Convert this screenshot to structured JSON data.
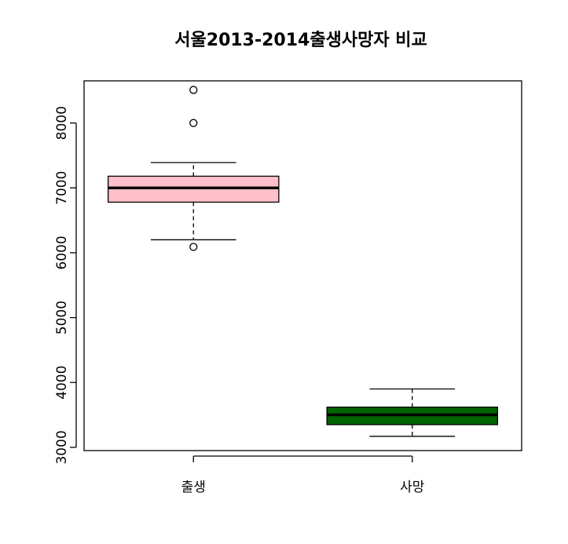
{
  "chart_data": {
    "type": "boxplot",
    "title": "서울2013-2014출생사망자 비교",
    "xlabel": "",
    "ylabel": "",
    "ylim": [
      2950,
      8650
    ],
    "yticks": [
      3000,
      4000,
      5000,
      6000,
      7000,
      8000
    ],
    "categories": [
      "출생",
      "사망"
    ],
    "boxes": [
      {
        "category": "출생",
        "whisker_low": 6200,
        "q1": 6780,
        "median": 7000,
        "q3": 7180,
        "whisker_high": 7390,
        "outliers": [
          8510,
          8000,
          6090
        ],
        "color": "#ffc0cb"
      },
      {
        "category": "사망",
        "whisker_low": 3170,
        "q1": 3350,
        "median": 3500,
        "q3": 3620,
        "whisker_high": 3900,
        "outliers": [],
        "color": "#006400"
      }
    ],
    "grid": false,
    "legend": "none"
  }
}
